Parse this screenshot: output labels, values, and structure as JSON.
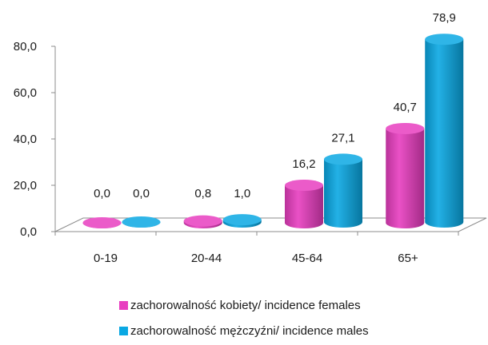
{
  "chart_data": {
    "type": "bar",
    "categories": [
      "0-19",
      "20-44",
      "45-64",
      "65+"
    ],
    "series": [
      {
        "name": "zachorowalność kobiety/ incidence females",
        "values": [
          0.0,
          0.8,
          16.2,
          40.7
        ],
        "labels": [
          "0,0",
          "0,8",
          "16,2",
          "40,7"
        ],
        "color": "#e83ec0"
      },
      {
        "name": "zachorowalność mężczyźni/ incidence males",
        "values": [
          0.0,
          1.0,
          27.1,
          78.9
        ],
        "labels": [
          "0,0",
          "1,0",
          "27,1",
          "78,9"
        ],
        "color": "#0aa8e3"
      }
    ],
    "y_ticks": [
      "0,0",
      "20,0",
      "40,0",
      "60,0",
      "80,0"
    ],
    "y_tick_values": [
      0,
      20,
      40,
      60,
      80
    ],
    "ylim": [
      0,
      80
    ],
    "grid": false,
    "legend_position": "bottom"
  }
}
